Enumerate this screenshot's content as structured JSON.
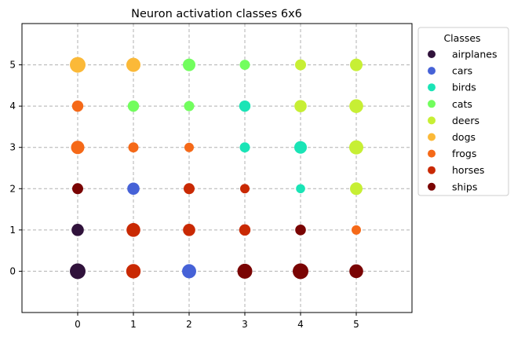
{
  "chart_data": {
    "type": "scatter",
    "title": "Neuron activation classes 6x6",
    "xlabel": "",
    "ylabel": "",
    "xlim": [
      -1,
      6
    ],
    "ylim": [
      -1,
      6
    ],
    "xticks": [
      "0",
      "1",
      "2",
      "3",
      "4",
      "5"
    ],
    "yticks": [
      "0",
      "1",
      "2",
      "3",
      "4",
      "5"
    ],
    "grid": true,
    "legend": {
      "title": "Classes",
      "placement": "outside-right-top",
      "entries": [
        {
          "name": "airplanes",
          "color": "#30123b"
        },
        {
          "name": "cars",
          "color": "#4662d7"
        },
        {
          "name": "birds",
          "color": "#1ae4b6"
        },
        {
          "name": "cats",
          "color": "#72fe5e"
        },
        {
          "name": "deers",
          "color": "#c7ef34"
        },
        {
          "name": "dogs",
          "color": "#fbb938"
        },
        {
          "name": "frogs",
          "color": "#f56918"
        },
        {
          "name": "horses",
          "color": "#c92903"
        },
        {
          "name": "ships",
          "color": "#7a0403"
        }
      ]
    },
    "points": [
      {
        "x": 0,
        "y": 5,
        "cls": "dogs",
        "size": 1.0
      },
      {
        "x": 1,
        "y": 5,
        "cls": "dogs",
        "size": 0.9
      },
      {
        "x": 2,
        "y": 5,
        "cls": "cats",
        "size": 0.8
      },
      {
        "x": 3,
        "y": 5,
        "cls": "cats",
        "size": 0.65
      },
      {
        "x": 4,
        "y": 5,
        "cls": "deers",
        "size": 0.7
      },
      {
        "x": 5,
        "y": 5,
        "cls": "deers",
        "size": 0.8
      },
      {
        "x": 0,
        "y": 4,
        "cls": "frogs",
        "size": 0.72
      },
      {
        "x": 1,
        "y": 4,
        "cls": "cats",
        "size": 0.72
      },
      {
        "x": 2,
        "y": 4,
        "cls": "cats",
        "size": 0.65
      },
      {
        "x": 3,
        "y": 4,
        "cls": "birds",
        "size": 0.72
      },
      {
        "x": 4,
        "y": 4,
        "cls": "deers",
        "size": 0.78
      },
      {
        "x": 5,
        "y": 4,
        "cls": "deers",
        "size": 0.88
      },
      {
        "x": 0,
        "y": 3,
        "cls": "frogs",
        "size": 0.85
      },
      {
        "x": 1,
        "y": 3,
        "cls": "frogs",
        "size": 0.65
      },
      {
        "x": 2,
        "y": 3,
        "cls": "frogs",
        "size": 0.6
      },
      {
        "x": 3,
        "y": 3,
        "cls": "birds",
        "size": 0.65
      },
      {
        "x": 4,
        "y": 3,
        "cls": "birds",
        "size": 0.8
      },
      {
        "x": 5,
        "y": 3,
        "cls": "deers",
        "size": 0.9
      },
      {
        "x": 0,
        "y": 2,
        "cls": "ships",
        "size": 0.7
      },
      {
        "x": 1,
        "y": 2,
        "cls": "cars",
        "size": 0.78
      },
      {
        "x": 2,
        "y": 2,
        "cls": "horses",
        "size": 0.7
      },
      {
        "x": 3,
        "y": 2,
        "cls": "horses",
        "size": 0.6
      },
      {
        "x": 4,
        "y": 2,
        "cls": "birds",
        "size": 0.58
      },
      {
        "x": 5,
        "y": 2,
        "cls": "deers",
        "size": 0.8
      },
      {
        "x": 0,
        "y": 1,
        "cls": "airplanes",
        "size": 0.78
      },
      {
        "x": 1,
        "y": 1,
        "cls": "horses",
        "size": 0.88
      },
      {
        "x": 2,
        "y": 1,
        "cls": "horses",
        "size": 0.78
      },
      {
        "x": 3,
        "y": 1,
        "cls": "horses",
        "size": 0.72
      },
      {
        "x": 4,
        "y": 1,
        "cls": "ships",
        "size": 0.68
      },
      {
        "x": 5,
        "y": 1,
        "cls": "frogs",
        "size": 0.6
      },
      {
        "x": 0,
        "y": 0,
        "cls": "airplanes",
        "size": 1.0
      },
      {
        "x": 1,
        "y": 0,
        "cls": "horses",
        "size": 0.92
      },
      {
        "x": 2,
        "y": 0,
        "cls": "cars",
        "size": 0.9
      },
      {
        "x": 3,
        "y": 0,
        "cls": "ships",
        "size": 0.95
      },
      {
        "x": 4,
        "y": 0,
        "cls": "ships",
        "size": 1.0
      },
      {
        "x": 5,
        "y": 0,
        "cls": "ships",
        "size": 0.88
      }
    ]
  }
}
